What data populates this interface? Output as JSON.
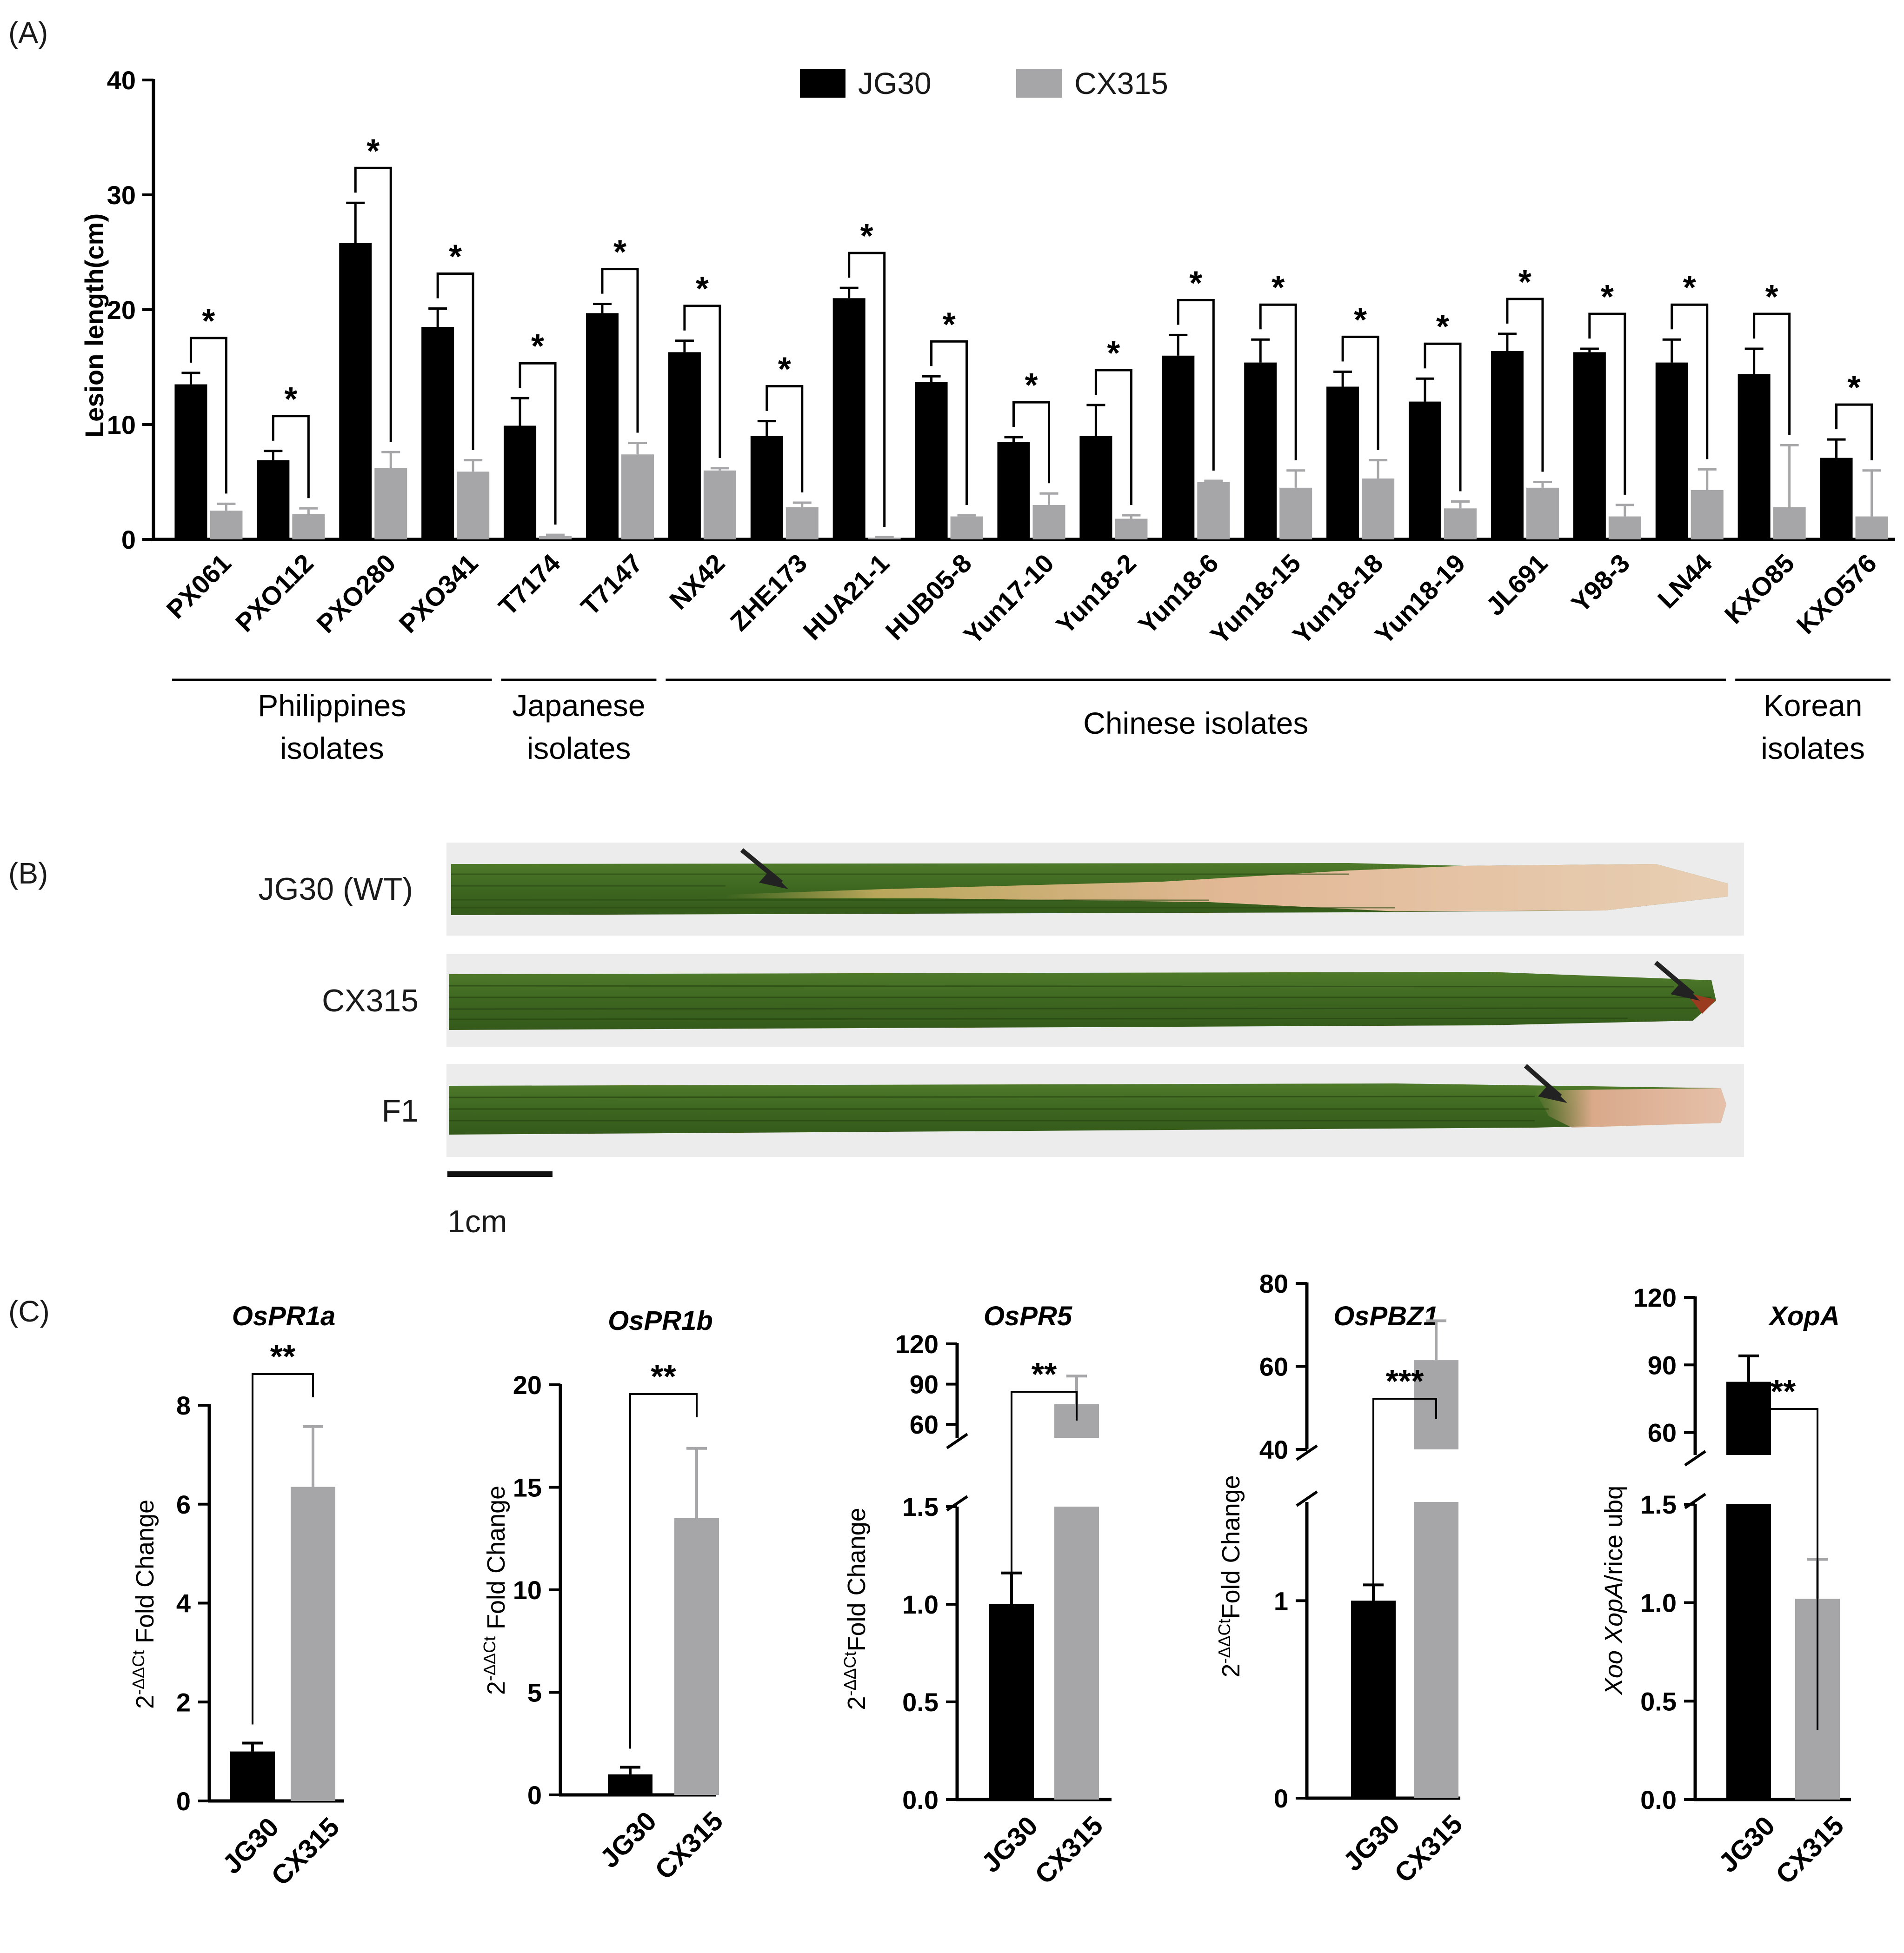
{
  "colors": {
    "jg30": "#000000",
    "cx315": "#a6a6a8",
    "axis": "#000000"
  },
  "chart_data": [
    {
      "panel_label": "(A)",
      "type": "bar",
      "ylabel": "Lesion length(cm)",
      "ylim": [
        0,
        40
      ],
      "yticks": [
        "0",
        "10",
        "20",
        "30",
        "40"
      ],
      "categories": [
        "PX061",
        "PXO112",
        "PXO280",
        "PXO341",
        "T7174",
        "T7147",
        "NX42",
        "ZHE173",
        "HUA21-1",
        "HUB05-8",
        "Yun17-10",
        "Yun18-2",
        "Yun18-6",
        "Yun18-15",
        "Yun18-18",
        "Yun18-19",
        "JL691",
        "Y98-3",
        "LN44",
        "KXO85",
        "KXO576"
      ],
      "series": [
        {
          "name": "JG30",
          "values": [
            13.5,
            6.9,
            25.8,
            18.5,
            9.9,
            19.7,
            16.3,
            9.0,
            21.0,
            13.7,
            8.5,
            9.0,
            16.0,
            15.4,
            13.3,
            12.0,
            16.4,
            16.3,
            15.4,
            14.4,
            7.1
          ],
          "errors": [
            1.0,
            0.8,
            3.5,
            1.6,
            2.4,
            0.8,
            1.0,
            1.3,
            0.9,
            0.5,
            0.4,
            2.7,
            1.8,
            2.0,
            1.3,
            2.0,
            1.5,
            0.3,
            2.0,
            2.2,
            1.6
          ]
        },
        {
          "name": "CX315",
          "values": [
            2.5,
            2.2,
            6.2,
            5.9,
            0.3,
            7.4,
            6.0,
            2.8,
            0.15,
            2.0,
            3.0,
            1.8,
            5.0,
            4.5,
            5.3,
            2.7,
            4.5,
            2.0,
            4.3,
            2.8,
            2.0
          ],
          "errors": [
            0.6,
            0.5,
            1.4,
            1.0,
            0.1,
            1.0,
            0.2,
            0.4,
            0.05,
            0.1,
            1.0,
            0.3,
            0.1,
            1.5,
            1.6,
            0.6,
            0.5,
            1.0,
            1.8,
            5.4,
            4.0
          ]
        }
      ],
      "significance": [
        "*",
        "*",
        "*",
        "*",
        "*",
        "*",
        "*",
        "*",
        "*",
        "*",
        "*",
        "*",
        "*",
        "*",
        "*",
        "*",
        "*",
        "*",
        "*",
        "*",
        "*"
      ],
      "groups": [
        {
          "label_line1": "Philippines",
          "label_line2": "isolates",
          "from": 0,
          "to": 3
        },
        {
          "label_line1": "Japanese",
          "label_line2": "isolates",
          "from": 4,
          "to": 5
        },
        {
          "label_line1": "Chinese isolates",
          "label_line2": "",
          "from": 6,
          "to": 18
        },
        {
          "label_line1": "Korean",
          "label_line2": "isolates",
          "from": 19,
          "to": 20
        }
      ],
      "legend": [
        "JG30",
        "CX315"
      ],
      "legend_position": "top-center"
    },
    {
      "panel_label": "(C)",
      "title": "OsPR1a",
      "type": "bar",
      "ylabel_base": "2",
      "ylabel_sup": "-ΔΔCt",
      "ylabel_text": " Fold Change",
      "categories": [
        "JG30",
        "CX315"
      ],
      "values": [
        1.0,
        6.35
      ],
      "errors": [
        0.17,
        1.22
      ],
      "ylim": [
        0,
        8
      ],
      "yticks": [
        "0",
        "2",
        "4",
        "6",
        "8"
      ],
      "significance": "**"
    },
    {
      "title": "OsPR1b",
      "type": "bar",
      "ylabel_base": "2",
      "ylabel_sup": "-ΔΔCt",
      "ylabel_text": " Fold Change",
      "categories": [
        "JG30",
        "CX315"
      ],
      "values": [
        1.0,
        13.5
      ],
      "errors": [
        0.35,
        3.4
      ],
      "ylim": [
        0,
        20
      ],
      "yticks": [
        "0",
        "5",
        "10",
        "15",
        "20"
      ],
      "significance": "**"
    },
    {
      "title": "OsPR5",
      "type": "bar",
      "broken_axis": true,
      "ylabel_base": "2",
      "ylabel_sup": "-ΔΔCt",
      "ylabel_text": "Fold Change",
      "categories": [
        "JG30",
        "CX315"
      ],
      "values": [
        1.0,
        75
      ],
      "errors": [
        0.16,
        21
      ],
      "lower_ylim": [
        0,
        1.5
      ],
      "lower_yticks": [
        "0.0",
        "0.5",
        "1.0",
        "1.5"
      ],
      "upper_ylim": [
        50,
        120
      ],
      "upper_yticks": [
        "60",
        "90",
        "120"
      ],
      "significance": "**"
    },
    {
      "title": "OsPBZ1",
      "type": "bar",
      "broken_axis": true,
      "ylabel_base": "2",
      "ylabel_sup": "-ΔΔCt",
      "ylabel_text": "Fold Change",
      "categories": [
        "JG30",
        "CX315"
      ],
      "values": [
        1.0,
        61.5
      ],
      "errors": [
        0.08,
        9.5
      ],
      "lower_ylim": [
        0,
        1.5
      ],
      "lower_yticks": [
        "0",
        "1"
      ],
      "upper_ylim": [
        40,
        80
      ],
      "upper_yticks": [
        "40",
        "60",
        "80"
      ],
      "significance": "***"
    },
    {
      "title": "XopA",
      "type": "bar",
      "broken_axis": true,
      "ylabel_italic": "Xoo XopA",
      "ylabel_text": "/rice ubq",
      "categories": [
        "JG30",
        "CX315"
      ],
      "values": [
        82.5,
        1.02
      ],
      "errors": [
        11.5,
        0.2
      ],
      "lower_ylim": [
        0,
        1.5
      ],
      "lower_yticks": [
        "0.0",
        "0.5",
        "1.0",
        "1.5"
      ],
      "upper_ylim": [
        50,
        120
      ],
      "upper_yticks": [
        "60",
        "90",
        "120"
      ],
      "significance": "**"
    }
  ],
  "panel_b": {
    "panel_label": "(B)",
    "rows": [
      {
        "label": "JG30 (WT)"
      },
      {
        "label": "CX315"
      },
      {
        "label": "F1"
      }
    ],
    "scale_bar_label": "1cm"
  }
}
